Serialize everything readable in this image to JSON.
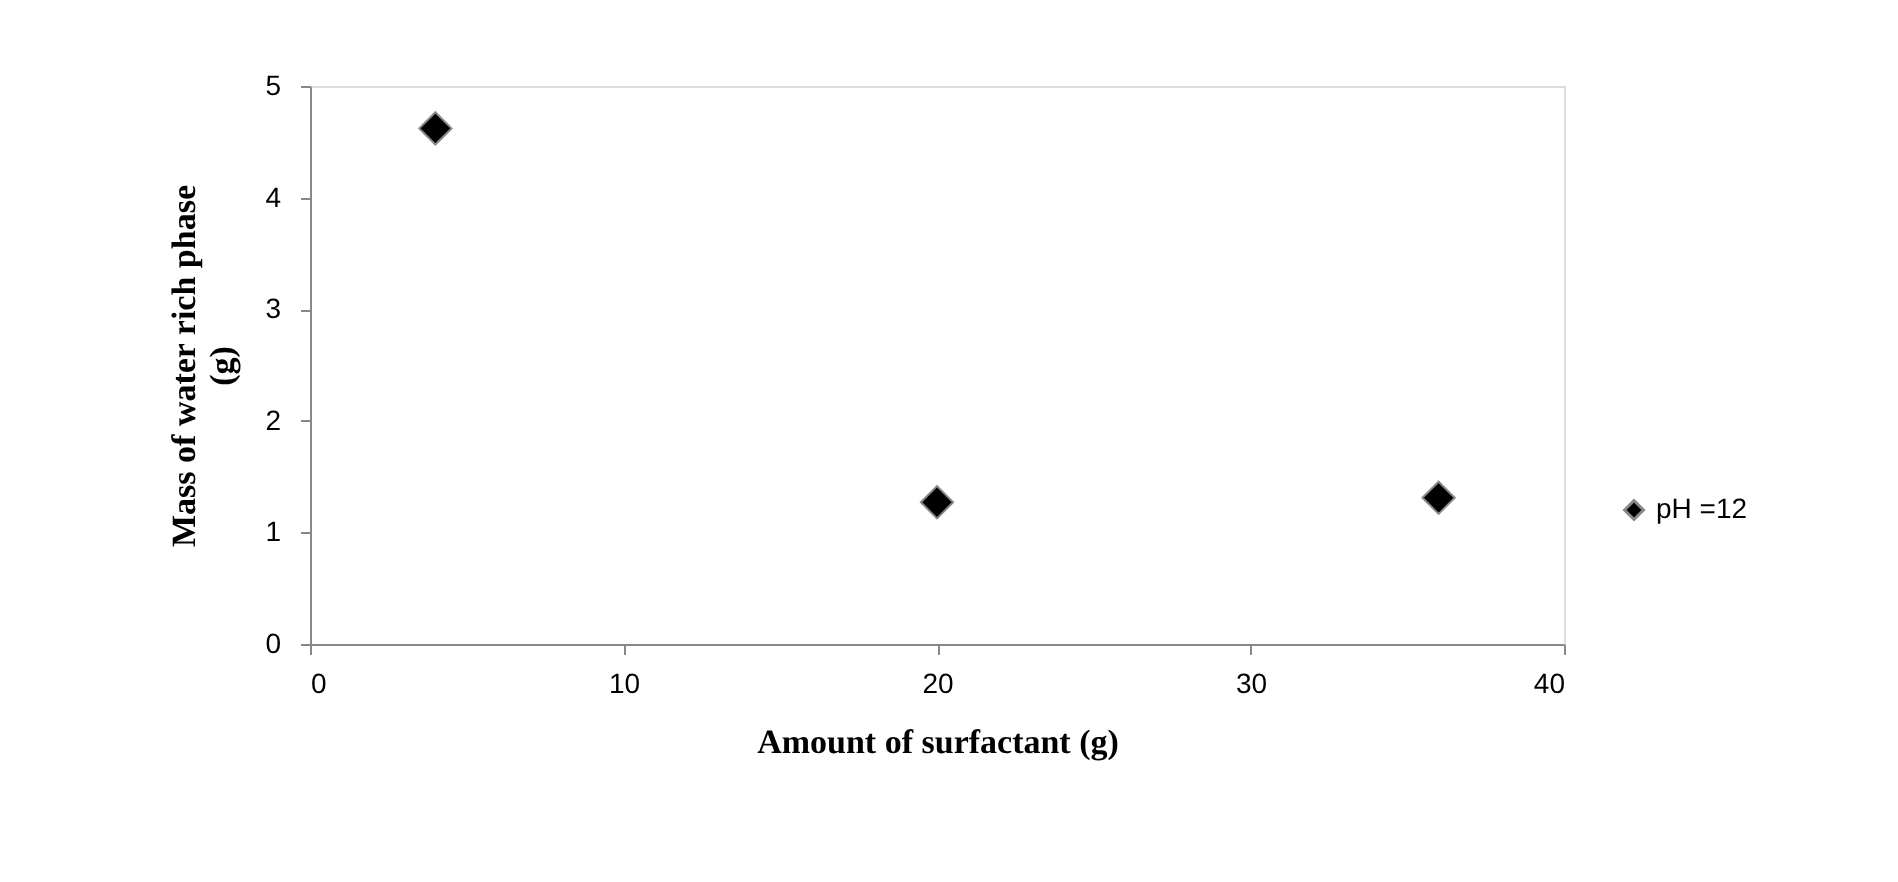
{
  "chart_data": {
    "type": "scatter",
    "xlabel": "Amount of surfactant (g)",
    "ylabel": "Mass of water rich phase (g)",
    "x": [
      4,
      20,
      36
    ],
    "series": [
      {
        "name": "pH =12",
        "color": "#000000",
        "values": [
          4.62,
          1.27,
          1.31
        ]
      }
    ],
    "xlim": [
      0,
      40
    ],
    "xticks": [
      0,
      10,
      20,
      30,
      40
    ],
    "ylim": [
      0,
      5
    ],
    "yticks": [
      0,
      1,
      2,
      3,
      4,
      5
    ],
    "grid": false,
    "legend": "right",
    "marker": "diamond"
  }
}
